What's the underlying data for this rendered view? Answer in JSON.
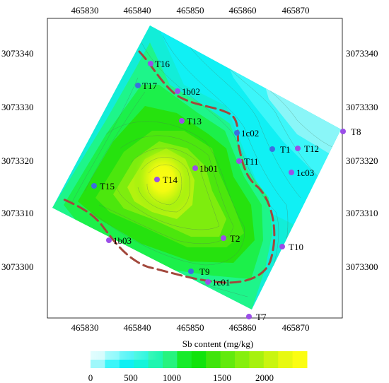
{
  "map": {
    "x_ticks": [
      "465830",
      "465840",
      "465850",
      "465860",
      "465870"
    ],
    "y_ticks": [
      "3073340",
      "3073330",
      "3073320",
      "3073310",
      "3073300"
    ],
    "colorbar": {
      "title": "Sb content (mg/kg)",
      "ticks": [
        "0",
        "500",
        "1000",
        "1500",
        "2000"
      ],
      "colors": [
        "#9ff8fb",
        "#3cf6f9",
        "#0ff0f3",
        "#13f5da",
        "#1ef6b0",
        "#27f37e",
        "#16eb2a",
        "#11e30c",
        "#40e40c",
        "#62ea0d",
        "#86ef0e",
        "#a7f10f",
        "#c9f510",
        "#e8f911",
        "#fbfd12"
      ]
    },
    "samples": [
      {
        "label": "T16",
        "color": "#9b4ee8"
      },
      {
        "label": "T17",
        "color": "#3a6fe0"
      },
      {
        "label": "1b02",
        "color": "#9b4ee8"
      },
      {
        "label": "T13",
        "color": "#9b4ee8"
      },
      {
        "label": "1c02",
        "color": "#3a6fe0"
      },
      {
        "label": "T1",
        "color": "#3a6fe0"
      },
      {
        "label": "T12",
        "color": "#9b4ee8"
      },
      {
        "label": "T8",
        "color": "#9b4ee8"
      },
      {
        "label": "T11",
        "color": "#9b4ee8"
      },
      {
        "label": "1c03",
        "color": "#9b4ee8"
      },
      {
        "label": "1b01",
        "color": "#9b4ee8"
      },
      {
        "label": "T14",
        "color": "#9b4ee8"
      },
      {
        "label": "T15",
        "color": "#3a6fe0"
      },
      {
        "label": "1b03",
        "color": "#9b4ee8"
      },
      {
        "label": "T2",
        "color": "#9b4ee8"
      },
      {
        "label": "T10",
        "color": "#9b4ee8"
      },
      {
        "label": "T9",
        "color": "#3a6fe0"
      },
      {
        "label": "1c01",
        "color": "#9b4ee8"
      },
      {
        "label": "T7",
        "color": "#9b4ee8"
      }
    ]
  }
}
